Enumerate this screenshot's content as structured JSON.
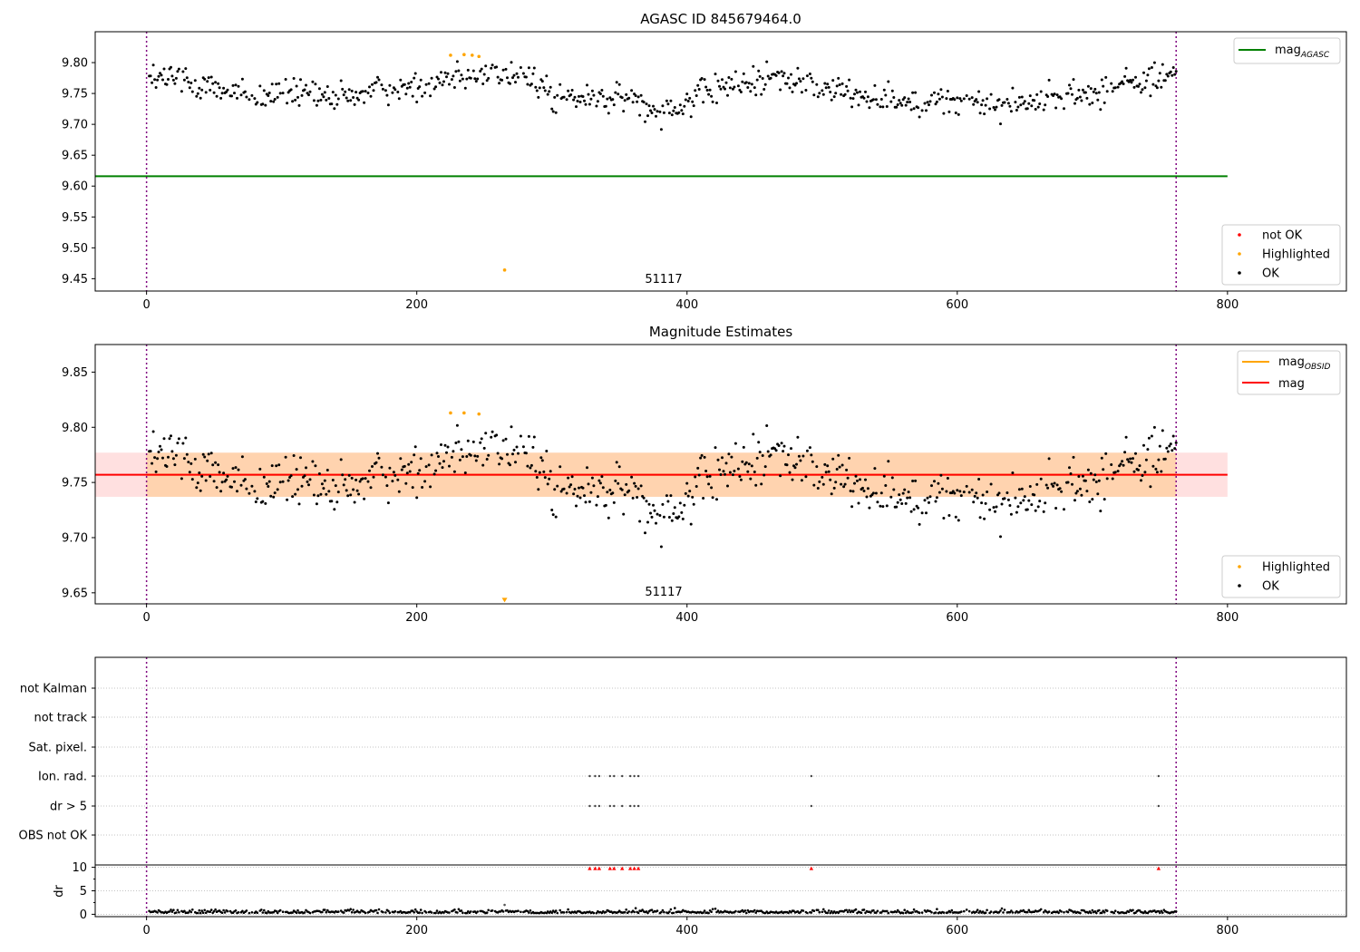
{
  "chart_data": [
    {
      "type": "scatter",
      "title": "AGASC ID 845679464.0",
      "xlim": [
        -38,
        888
      ],
      "ylim": [
        9.43,
        9.85
      ],
      "xticks": [
        0,
        200,
        400,
        600,
        800
      ],
      "yticks": [
        9.45,
        9.5,
        9.55,
        9.6,
        9.65,
        9.7,
        9.75,
        9.8
      ],
      "mag_agasc": 9.616,
      "mag_agasc_xrange": [
        -38,
        800
      ],
      "obs_bounds": [
        0,
        762
      ],
      "obsid_label": "51117",
      "ok_trend": [
        [
          0,
          9.775
        ],
        [
          25,
          9.775
        ],
        [
          50,
          9.76
        ],
        [
          80,
          9.742
        ],
        [
          110,
          9.752
        ],
        [
          140,
          9.74
        ],
        [
          170,
          9.755
        ],
        [
          200,
          9.76
        ],
        [
          230,
          9.785
        ],
        [
          260,
          9.78
        ],
        [
          295,
          9.77
        ],
        [
          300,
          9.74
        ],
        [
          330,
          9.742
        ],
        [
          360,
          9.74
        ],
        [
          380,
          9.725
        ],
        [
          400,
          9.735
        ],
        [
          420,
          9.758
        ],
        [
          440,
          9.762
        ],
        [
          460,
          9.78
        ],
        [
          480,
          9.768
        ],
        [
          500,
          9.758
        ],
        [
          530,
          9.748
        ],
        [
          560,
          9.74
        ],
        [
          600,
          9.735
        ],
        [
          630,
          9.732
        ],
        [
          660,
          9.74
        ],
        [
          700,
          9.75
        ],
        [
          730,
          9.77
        ],
        [
          762,
          9.78
        ]
      ],
      "highlighted": [
        {
          "x": 225,
          "y": 9.812
        },
        {
          "x": 235,
          "y": 9.813
        },
        {
          "x": 241,
          "y": 9.812
        },
        {
          "x": 246,
          "y": 9.81
        },
        {
          "x": 265,
          "y": 9.464
        }
      ],
      "legend_line": {
        "label": "mag",
        "sub": "AGASC",
        "color": "#008000"
      },
      "legend_points": [
        {
          "label": "not OK",
          "color": "#ff0000"
        },
        {
          "label": "Highlighted",
          "color": "#ffa500"
        },
        {
          "label": "OK",
          "color": "#000000"
        }
      ]
    },
    {
      "type": "scatter",
      "title": "Magnitude Estimates",
      "xlim": [
        -38,
        888
      ],
      "ylim": [
        9.64,
        9.875
      ],
      "xticks": [
        0,
        200,
        400,
        600,
        800
      ],
      "yticks": [
        9.65,
        9.7,
        9.75,
        9.8,
        9.85
      ],
      "mag": 9.757,
      "mag_band": [
        9.737,
        9.777
      ],
      "mag_xrange": [
        -38,
        800
      ],
      "obsid_band": [
        9.737,
        9.777
      ],
      "obs_bounds": [
        0,
        762
      ],
      "obsid_label": "51117",
      "highlighted": [
        {
          "x": 225,
          "y": 9.813
        },
        {
          "x": 235,
          "y": 9.813
        },
        {
          "x": 246,
          "y": 9.812
        }
      ],
      "highlighted_clipped": [
        {
          "x": 265,
          "y": 9.643
        }
      ],
      "legend_lines": [
        {
          "label": "mag",
          "sub": "OBSID",
          "color": "#ffa500"
        },
        {
          "label": "mag",
          "sub": "",
          "color": "#ff0000"
        }
      ],
      "legend_points": [
        {
          "label": "Highlighted",
          "color": "#ffa500"
        },
        {
          "label": "OK",
          "color": "#000000"
        }
      ]
    },
    {
      "type": "scatter",
      "xlim": [
        -38,
        888
      ],
      "xticks": [
        0,
        200,
        400,
        600,
        800
      ],
      "flag_labels": [
        "not Kalman",
        "not track",
        "Sat. pixel.",
        "Ion. rad.",
        "dr > 5",
        "OBS not OK"
      ],
      "flag_points": {
        "Ion. rad.": [
          328,
          332,
          335,
          343,
          346,
          352,
          358,
          361,
          364,
          492,
          749
        ],
        "dr > 5": [
          328,
          332,
          335,
          343,
          346,
          352,
          358,
          361,
          364,
          492,
          749
        ]
      },
      "dr_ylabel": "dr",
      "dr_yticks": [
        0,
        5,
        10
      ],
      "dr_ylim": [
        -0.5,
        10.5
      ],
      "dr_outliers": [
        {
          "x": 265,
          "y": 2.0
        }
      ],
      "dr_capped": [
        328,
        332,
        335,
        343,
        346,
        352,
        358,
        361,
        364,
        492,
        749
      ],
      "dr_cap_value": 9.8
    }
  ]
}
